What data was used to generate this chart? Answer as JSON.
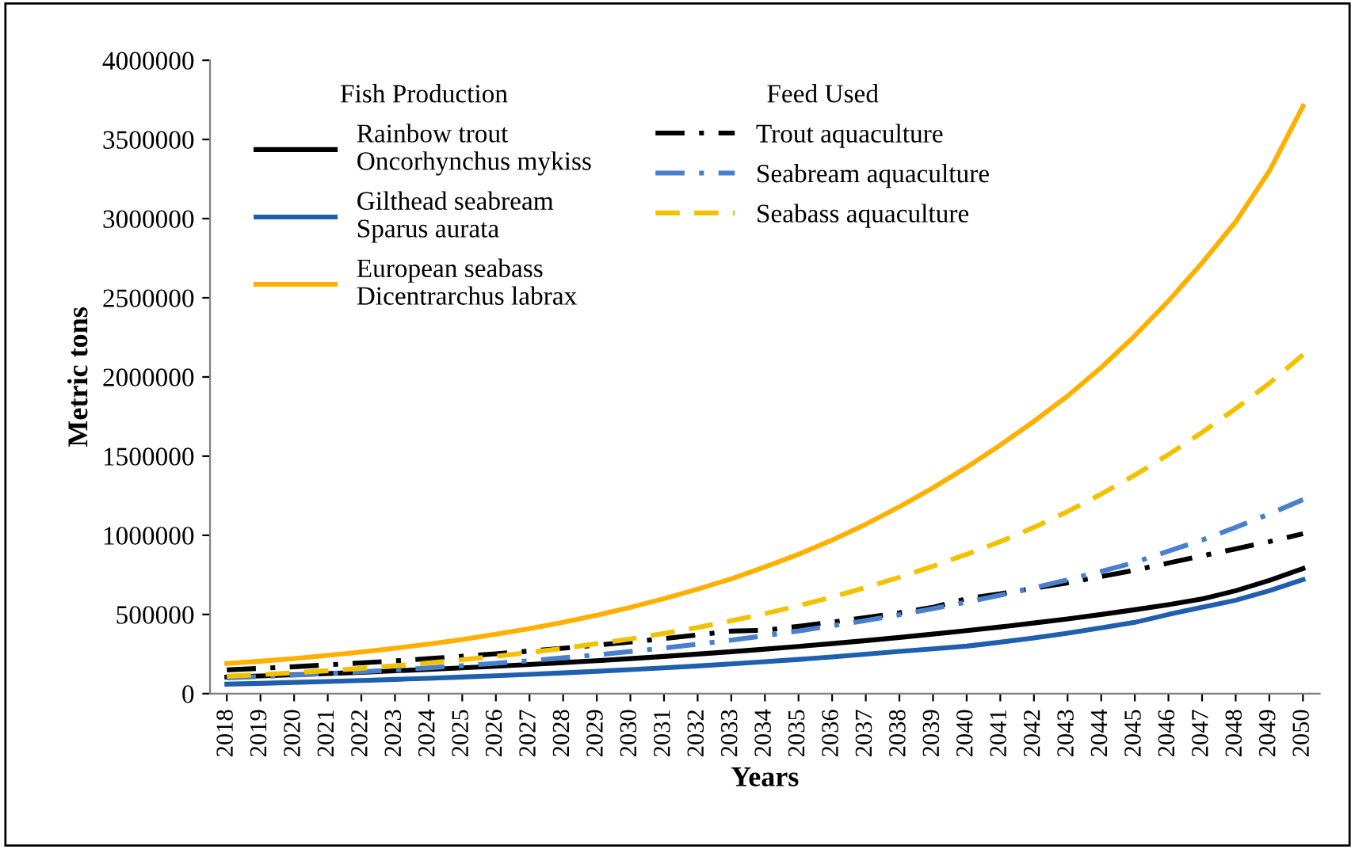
{
  "chart_data": {
    "type": "line",
    "xlabel": "Years",
    "ylabel": "Metric tons",
    "categories": [
      "2018",
      "2019",
      "2020",
      "2021",
      "2022",
      "2023",
      "2024",
      "2025",
      "2026",
      "2027",
      "2028",
      "2029",
      "2030",
      "2031",
      "2032",
      "2033",
      "2034",
      "2035",
      "2036",
      "2037",
      "2038",
      "2039",
      "2040",
      "2041",
      "2042",
      "2043",
      "2044",
      "2045",
      "2046",
      "2047",
      "2048",
      "2049",
      "2050"
    ],
    "ylim": [
      0,
      4000000
    ],
    "yticks": [
      0,
      500000,
      1000000,
      1500000,
      2000000,
      2500000,
      3000000,
      3500000,
      4000000
    ],
    "grid": false,
    "legend": "top left",
    "legend_title": [
      "Fish Production",
      "Feed Used"
    ],
    "series": [
      {
        "name": "Rainbow trout\nOncorhynchus mykiss",
        "color": "#000000",
        "line_style": "solid",
        "values": [
          105000,
          112000,
          119000,
          127000,
          135000,
          144000,
          153000,
          163000,
          173000,
          184000,
          196000,
          208000,
          221000,
          235000,
          250000,
          265000,
          281000,
          298000,
          316000,
          335000,
          355000,
          376000,
          398000,
          421000,
          446000,
          472000,
          500000,
          530000,
          562000,
          598000,
          650000,
          715000,
          790000
        ]
      },
      {
        "name": "Gilthead seabream\nSparus aurata",
        "color": "#1f5fad",
        "line_style": "solid",
        "values": [
          60000,
          65000,
          71000,
          77000,
          83000,
          90000,
          97000,
          105000,
          113000,
          122000,
          131000,
          141000,
          152000,
          163000,
          175000,
          188000,
          202000,
          216000,
          232000,
          249000,
          267000,
          283000,
          300000,
          325000,
          352000,
          382000,
          415000,
          450000,
          500000,
          545000,
          590000,
          650000,
          720000
        ]
      },
      {
        "name": "European seabass\nDicentrarchus labrax",
        "color": "#ffb000",
        "line_style": "solid",
        "values": [
          190000,
          205000,
          222000,
          242000,
          263000,
          287000,
          313000,
          342000,
          375000,
          410000,
          450000,
          495000,
          545000,
          600000,
          660000,
          725000,
          800000,
          880000,
          970000,
          1070000,
          1180000,
          1300000,
          1430000,
          1570000,
          1720000,
          1880000,
          2060000,
          2260000,
          2480000,
          2720000,
          2980000,
          3300000,
          3710000
        ]
      },
      {
        "name": "Trout aquaculture",
        "color": "#000000",
        "line_style": "dashdot",
        "values": [
          150000,
          160000,
          170000,
          182000,
          194000,
          207000,
          221000,
          236000,
          252000,
          269000,
          287000,
          306000,
          326000,
          348000,
          371000,
          395000,
          400000,
          425000,
          452000,
          480000,
          510000,
          545000,
          600000,
          630000,
          665000,
          700000,
          740000,
          780000,
          825000,
          870000,
          915000,
          960000,
          1010000
        ]
      },
      {
        "name": "Seabream aquaculture",
        "color": "#4a7fcc",
        "line_style": "dashdot",
        "values": [
          100000,
          108000,
          117000,
          127000,
          138000,
          150000,
          163000,
          177000,
          192000,
          208000,
          226000,
          245000,
          266000,
          288000,
          312000,
          338000,
          366000,
          396000,
          428000,
          462000,
          498000,
          537000,
          578000,
          622000,
          669000,
          719000,
          772000,
          829000,
          900000,
          970000,
          1050000,
          1135000,
          1225000
        ]
      },
      {
        "name": "Seabass aquaculture",
        "color": "#f2c200",
        "line_style": "dashed",
        "values": [
          110000,
          120000,
          132000,
          145000,
          160000,
          176000,
          194000,
          214000,
          236000,
          260000,
          286000,
          315000,
          346000,
          380000,
          418000,
          460000,
          505000,
          555000,
          610000,
          670000,
          735000,
          805000,
          880000,
          960000,
          1050000,
          1150000,
          1260000,
          1380000,
          1510000,
          1650000,
          1800000,
          1960000,
          2140000
        ]
      }
    ]
  }
}
